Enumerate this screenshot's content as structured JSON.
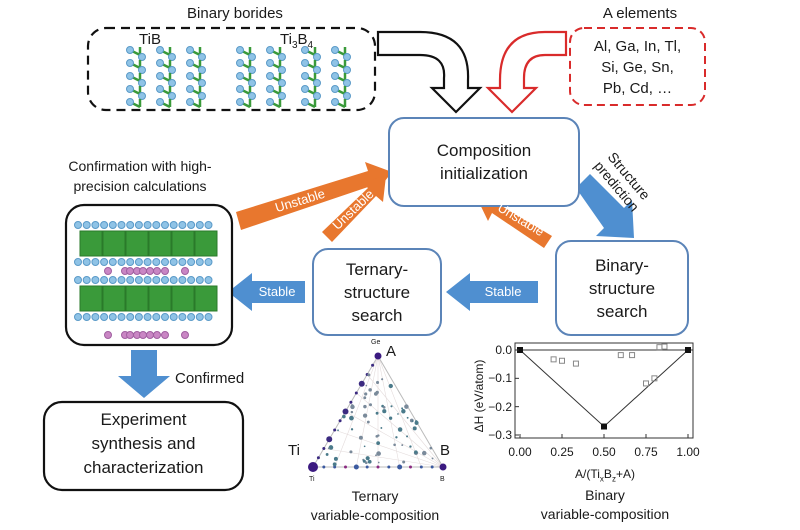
{
  "binary_borides": {
    "title": "Binary borides",
    "tib": "TiB",
    "ti3b4": "Ti",
    "ti3b4_sub3": "3",
    "ti3b4_b": "B",
    "ti3b4_sub4": "4"
  },
  "a_elements": {
    "title": "A elements",
    "lines": [
      "Al, Ga, In, Tl,",
      "Si, Ge, Sn,",
      "Pb, Cd, …"
    ]
  },
  "composition": {
    "line1": "Composition",
    "line2": "initialization"
  },
  "structure_prediction": {
    "line1": "Structure",
    "line2": "prediction"
  },
  "binary_search": {
    "line1": "Binary-",
    "line2": "structure",
    "line3": "search"
  },
  "ternary_search": {
    "line1": "Ternary-",
    "line2": "structure",
    "line3": "search"
  },
  "arrows": {
    "stable1": "Stable",
    "stable2": "Stable",
    "unstable1": "Unstable",
    "unstable2": "Unstable",
    "unstable3": "Unstable",
    "confirmed": "Confirmed"
  },
  "confirmation": {
    "line1": "Confirmation with high-",
    "line2": "precision calculations"
  },
  "experiment": {
    "line1": "Experiment",
    "line2": "synthesis and",
    "line3": "characterization"
  },
  "ternary_plot": {
    "apex_small": "Ge",
    "apex": "A",
    "left": "Ti",
    "left_small": "Ti",
    "right": "B",
    "right_small": "B",
    "caption1": "Ternary",
    "caption2": "variable-composition"
  },
  "colors": {
    "blue_box": "#5b84b8",
    "blue_arrow": "#4f8fd0",
    "orange_arrow": "#e8772e",
    "red": "#d92b2b",
    "ti_atom": "#8fc3e6",
    "b_atom": "#3a9a3a",
    "a_atom": "#c986c4"
  },
  "chart_data": {
    "type": "scatter",
    "title": "",
    "xlabel": "A/(TixBz+A)",
    "ylabel": "ΔH (eV/atom)",
    "caption1": "Binary",
    "caption2": "variable-composition",
    "xlim": [
      0,
      1
    ],
    "ylim": [
      -0.3,
      0.02
    ],
    "xticks": [
      "0.00",
      "0.25",
      "0.50",
      "0.75",
      "1.00"
    ],
    "yticks": [
      "0.0",
      "-0.1",
      "-0.2",
      "-0.3"
    ],
    "hull": {
      "x": [
        0,
        0.5,
        1
      ],
      "y": [
        0,
        -0.27,
        0
      ]
    },
    "other": {
      "x": [
        0.2,
        0.25,
        0.333,
        0.6,
        0.667,
        0.75,
        0.8,
        0.83,
        0.86
      ],
      "y": [
        -0.033,
        -0.038,
        -0.048,
        -0.018,
        -0.018,
        -0.118,
        -0.1,
        0.01,
        0.012
      ]
    }
  }
}
